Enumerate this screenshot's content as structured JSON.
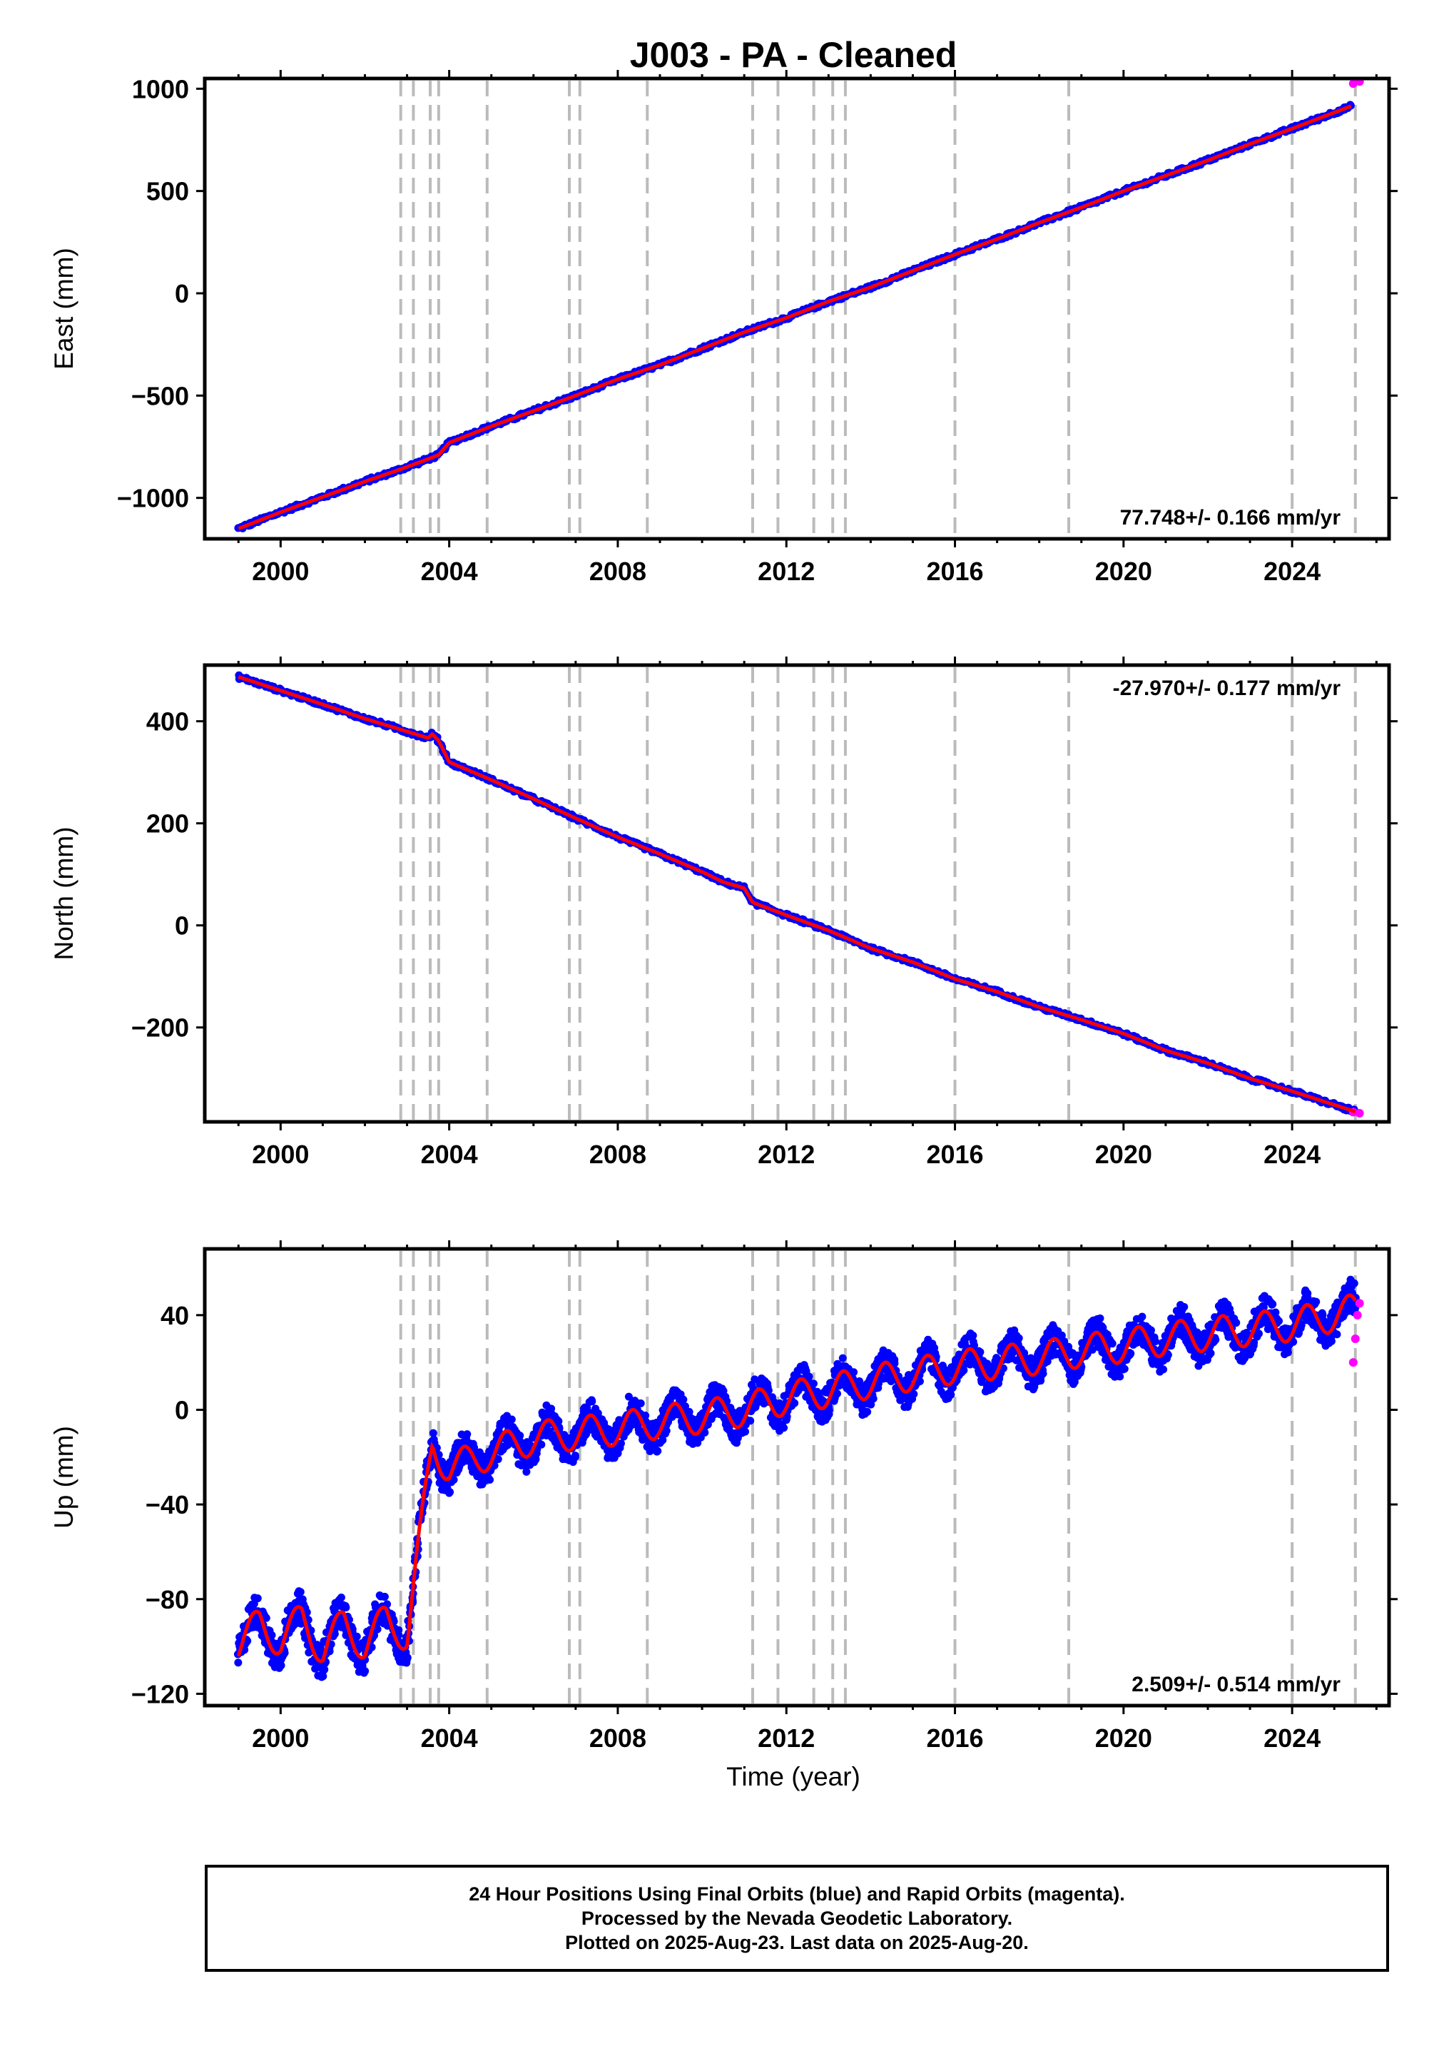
{
  "title": "J003  - PA - Cleaned",
  "colors": {
    "final_orbits": "#0000ff",
    "rapid_orbits": "#ff00ff",
    "model": "#ff0000",
    "event_lines": "#bbbbbb",
    "frame": "#000000"
  },
  "event_lines_years": [
    2002.85,
    2003.15,
    2003.55,
    2003.75,
    2004.9,
    2006.85,
    2007.1,
    2008.7,
    2011.2,
    2011.8,
    2012.65,
    2013.1,
    2013.4,
    2016.0,
    2018.7,
    2024.0,
    2025.5
  ],
  "x_axis": {
    "label": "Time (year)",
    "range": [
      1998.2,
      2026.3
    ],
    "ticks": [
      2000,
      2004,
      2008,
      2012,
      2016,
      2020,
      2024
    ]
  },
  "footer": {
    "line1": "24 Hour Positions Using Final Orbits (blue) and Rapid Orbits (magenta).",
    "line2": "Processed by the Nevada Geodetic Laboratory.",
    "line3": "Plotted on 2025-Aug-23. Last data on 2025-Aug-20."
  },
  "chart_data": [
    {
      "type": "scatter",
      "component": "east",
      "ylabel": "East (mm)",
      "ylim": [
        -1200,
        1050
      ],
      "yticks": [
        -1000,
        -500,
        0,
        500,
        1000
      ],
      "ytick_labels": [
        "−1000",
        "−500",
        "0",
        "500",
        "1000"
      ],
      "rate_label": "77.748+/- 0.166 mm/yr",
      "rate_position": "bottom-right",
      "series": [
        {
          "name": "Final Orbits (blue)",
          "x": [
            1999.0,
            2000.0,
            2001.0,
            2002.0,
            2002.85,
            2003.5,
            2003.75,
            2004.0,
            2005.0,
            2006.0,
            2007.0,
            2008.0,
            2009.0,
            2010.0,
            2011.0,
            2012.0,
            2013.0,
            2014.0,
            2015.0,
            2016.0,
            2017.0,
            2018.0,
            2019.0,
            2020.0,
            2021.0,
            2022.0,
            2023.0,
            2024.0,
            2025.4
          ],
          "y": [
            -1150,
            -1070,
            -995,
            -920,
            -860,
            -810,
            -790,
            -730,
            -650,
            -575,
            -500,
            -420,
            -350,
            -270,
            -190,
            -120,
            -40,
            30,
            110,
            190,
            265,
            345,
            420,
            500,
            575,
            650,
            730,
            805,
            915
          ]
        },
        {
          "name": "Rapid Orbits (magenta)",
          "x": [
            2025.45,
            2025.6
          ],
          "y": [
            1025,
            1035
          ]
        }
      ]
    },
    {
      "type": "scatter",
      "component": "north",
      "ylabel": "North (mm)",
      "ylim": [
        -385,
        510
      ],
      "yticks": [
        -200,
        0,
        200,
        400
      ],
      "ytick_labels": [
        "−200",
        "0",
        "200",
        "400"
      ],
      "rate_label": "-27.970+/- 0.177 mm/yr",
      "rate_position": "top-right",
      "series": [
        {
          "name": "Final Orbits (blue)",
          "x": [
            1999.0,
            2000.0,
            2001.0,
            2002.0,
            2002.8,
            2003.5,
            2003.6,
            2003.75,
            2004.0,
            2005.0,
            2006.0,
            2007.0,
            2008.0,
            2009.0,
            2010.0,
            2010.5,
            2011.0,
            2011.2,
            2012.0,
            2013.0,
            2014.0,
            2015.0,
            2016.0,
            2017.0,
            2018.0,
            2019.0,
            2020.0,
            2021.0,
            2022.0,
            2023.0,
            2024.0,
            2025.5
          ],
          "y": [
            487,
            460,
            433,
            405,
            385,
            367,
            375,
            362,
            320,
            285,
            248,
            210,
            173,
            140,
            105,
            85,
            73,
            45,
            20,
            -10,
            -45,
            -72,
            -105,
            -130,
            -160,
            -185,
            -212,
            -245,
            -270,
            -300,
            -325,
            -365
          ]
        },
        {
          "name": "Rapid Orbits (magenta)",
          "x": [
            2025.45,
            2025.6
          ],
          "y": [
            -366,
            -368
          ]
        }
      ]
    },
    {
      "type": "scatter",
      "component": "up",
      "ylabel": "Up (mm)",
      "ylim": [
        -125,
        68
      ],
      "yticks": [
        -120,
        -80,
        -40,
        0,
        40
      ],
      "ytick_labels": [
        "−120",
        "−80",
        "−40",
        "0",
        "40"
      ],
      "rate_label": "2.509+/- 0.514 mm/yr",
      "rate_position": "bottom-right",
      "series": [
        {
          "name": "Final Orbits (blue)",
          "x": [
            1999.0,
            1999.5,
            2000.0,
            2000.5,
            2001.0,
            2001.5,
            2002.0,
            2002.5,
            2003.0,
            2003.6,
            2004.0,
            2005.0,
            2006.0,
            2007.0,
            2008.0,
            2009.0,
            2010.0,
            2011.0,
            2012.0,
            2013.0,
            2014.0,
            2015.0,
            2016.0,
            2017.0,
            2018.0,
            2019.0,
            2020.0,
            2021.0,
            2022.0,
            2023.0,
            2024.0,
            2025.0,
            2025.5
          ],
          "y": [
            -100,
            -90,
            -98,
            -88,
            -102,
            -90,
            -100,
            -88,
            -96,
            -15,
            -25,
            -18,
            -12,
            -10,
            -8,
            -5,
            -3,
            0,
            5,
            8,
            12,
            15,
            18,
            20,
            22,
            25,
            27,
            30,
            32,
            34,
            36,
            40,
            42
          ]
        },
        {
          "name": "Rapid Orbits (magenta)",
          "x": [
            2025.45,
            2025.5,
            2025.55,
            2025.6
          ],
          "y": [
            20,
            30,
            40,
            45
          ]
        }
      ]
    }
  ]
}
